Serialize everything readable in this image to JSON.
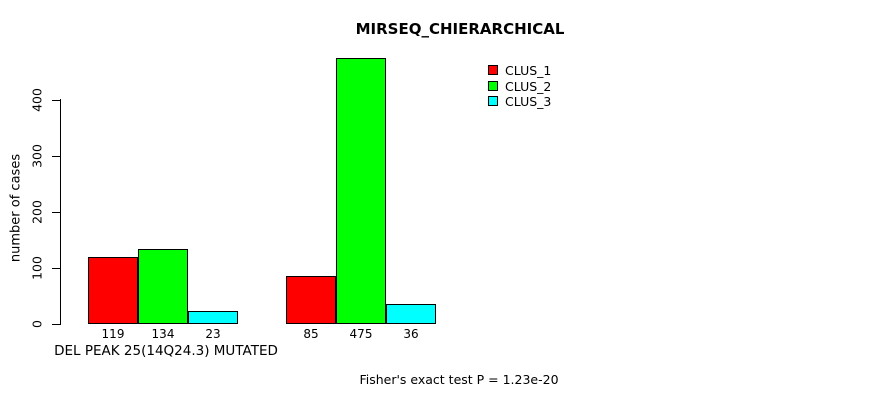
{
  "chart_data": {
    "type": "bar",
    "title": "MIRSEQ_CHIERARCHICAL",
    "ylabel": "number of cases",
    "xlabel": "DEL PEAK 25(14Q24.3) MUTATED",
    "annotation": "Fisher's exact test P = 1.23e-20",
    "yticks": [
      0,
      100,
      200,
      300,
      400
    ],
    "ylim": [
      0,
      480
    ],
    "grid": false,
    "legend_position": "top-right",
    "num_groups": 2,
    "series": [
      {
        "name": "CLUS_1",
        "color": "#ff0000",
        "values": [
          119,
          85
        ]
      },
      {
        "name": "CLUS_2",
        "color": "#00ff00",
        "values": [
          134,
          475
        ]
      },
      {
        "name": "CLUS_3",
        "color": "#00ffff",
        "values": [
          23,
          36
        ]
      }
    ],
    "bar_labels": [
      [
        "119",
        "134",
        "23"
      ],
      [
        "85",
        "475",
        "36"
      ]
    ]
  }
}
